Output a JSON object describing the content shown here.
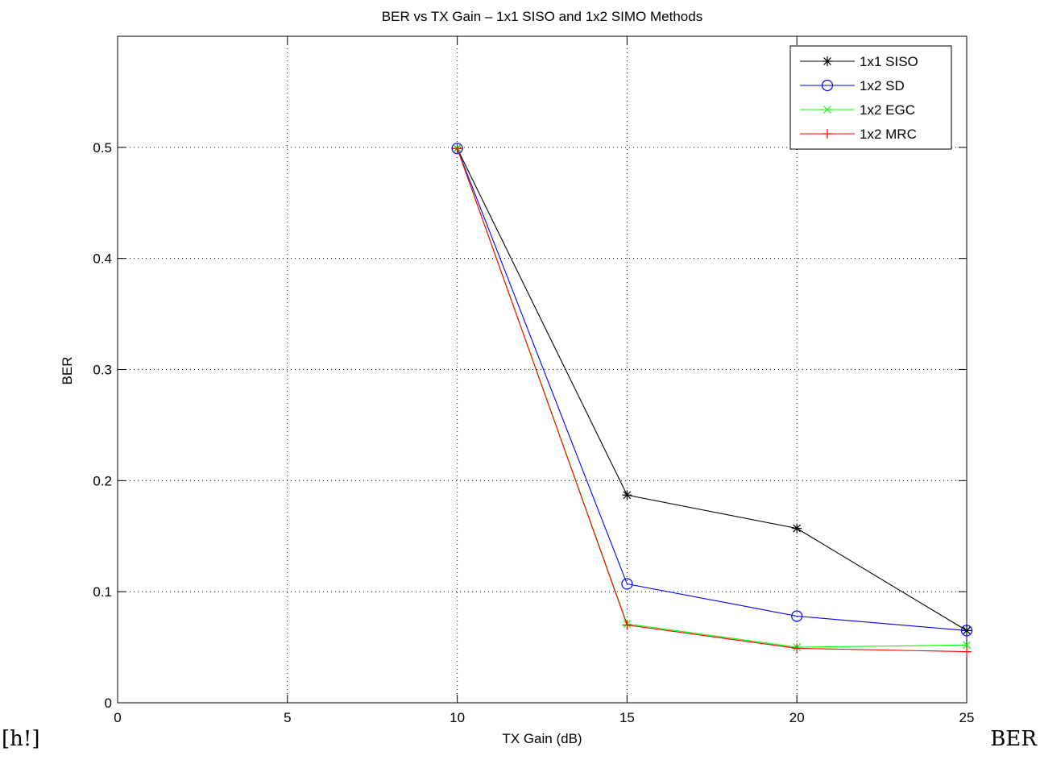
{
  "chart_data": {
    "type": "line",
    "title": "BER vs TX Gain – 1x1 SISO and 1x2 SIMO Methods",
    "xlabel": "TX Gain (dB)",
    "ylabel": "BER",
    "xlim": [
      0,
      25
    ],
    "ylim": [
      0,
      0.6
    ],
    "xticks": [
      0,
      5,
      10,
      15,
      20,
      25
    ],
    "xtick_labels": [
      "0",
      "5",
      "10",
      "15",
      "20",
      "25"
    ],
    "yticks": [
      0,
      0.1,
      0.2,
      0.3,
      0.4,
      0.5
    ],
    "ytick_labels": [
      "0",
      "0.1",
      "0.2",
      "0.3",
      "0.4",
      "0.5"
    ],
    "grid": true,
    "legend_position": "top-right",
    "x": [
      10,
      15,
      20,
      25
    ],
    "series": [
      {
        "name": "1x1 SISO",
        "values": [
          0.499,
          0.187,
          0.157,
          0.065
        ],
        "color": "#000000",
        "marker": "star"
      },
      {
        "name": "1x2 SD",
        "values": [
          0.499,
          0.107,
          0.078,
          0.065
        ],
        "color": "#0000ff",
        "marker": "circle"
      },
      {
        "name": "1x2 EGC",
        "values": [
          0.499,
          0.071,
          0.05,
          0.052
        ],
        "color": "#00ff00",
        "marker": "x"
      },
      {
        "name": "1x2 MRC",
        "values": [
          0.499,
          0.07,
          0.049,
          0.046
        ],
        "color": "#ff0000",
        "marker": "plus"
      }
    ]
  },
  "page": {
    "left_note": "[h!]",
    "right_note": "BER"
  }
}
